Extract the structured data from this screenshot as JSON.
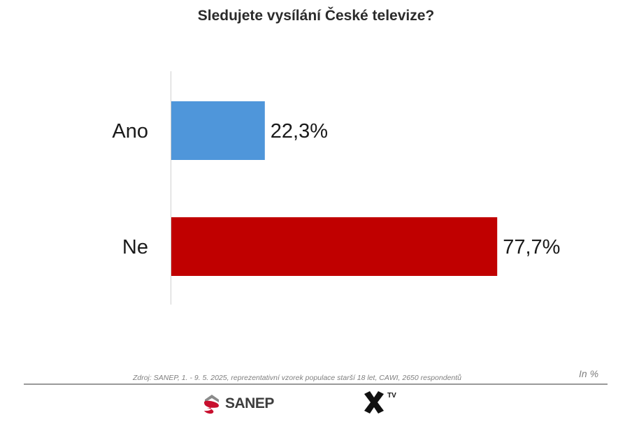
{
  "title": "Sledujete vysílání České televize?",
  "chart_data": {
    "type": "bar",
    "orientation": "horizontal",
    "title": "Sledujete vysílání České televize?",
    "categories": [
      "Ano",
      "Ne"
    ],
    "values": [
      22.3,
      77.7
    ],
    "value_labels": [
      "22,3%",
      "77,7%"
    ],
    "colors": [
      "#4F96DA",
      "#C00000"
    ],
    "xlim": [
      0,
      100
    ],
    "grid": false,
    "legend": "none"
  },
  "footer": {
    "source": "Zdroj: SANEP, 1. - 9. 5. 2025, reprezentativní vzorek populace starší 18 let, CAWI, 2650 respondentů",
    "unit": "In %",
    "logos": {
      "sanep": "SANEP",
      "xtv_mark": "X",
      "xtv_suffix": "TV"
    }
  }
}
